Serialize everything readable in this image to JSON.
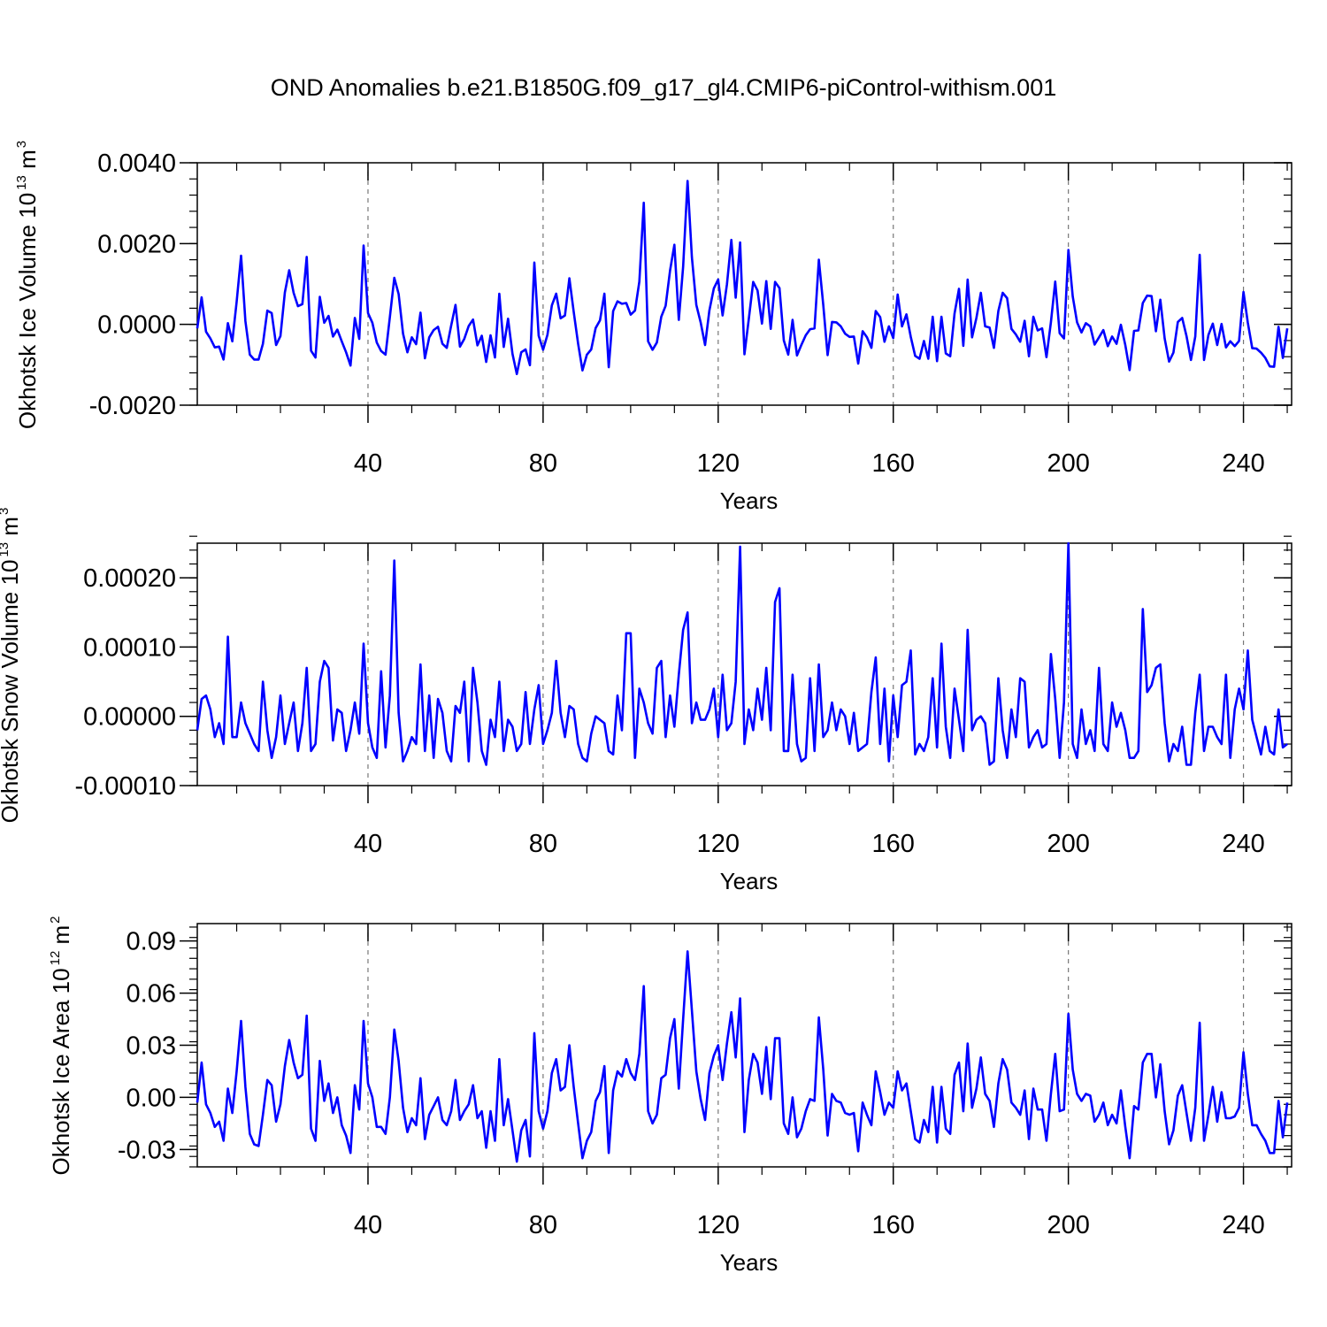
{
  "title": "OND Anomalies b.e21.B1850G.f09_g17_gl4.CMIP6-piControl-withism.001",
  "colors": {
    "series": "#0000ff",
    "axis": "#000000",
    "refline": "#777777"
  },
  "chart_data": [
    {
      "type": "line",
      "name": "ice-volume",
      "ylabel_main": "Okhotsk Ice Volume 10",
      "ylabel_sup1": "13",
      "ylabel_mid": " m",
      "ylabel_sup2": "3",
      "xlabel": "Years",
      "xlim": [
        1,
        251
      ],
      "ylim": [
        -0.002,
        0.004
      ],
      "xticks": [
        40,
        80,
        120,
        160,
        200,
        240
      ],
      "xtick_labels": [
        "40",
        "80",
        "120",
        "160",
        "200",
        "240"
      ],
      "yticks": [
        -0.002,
        0.0,
        0.002,
        0.004
      ],
      "ytick_labels": [
        "-0.0020",
        "0.0000",
        "0.0020",
        "0.0040"
      ],
      "yminor_step": 0.0004,
      "reference_lines_x": [
        40,
        80,
        120,
        160,
        200,
        240
      ],
      "x_start": 1,
      "values": [
        -0.0001,
        0.00067,
        -0.00018,
        -0.00035,
        -0.00057,
        -0.00055,
        -0.00087,
        3e-05,
        -0.00042,
        0.00056,
        0.0017,
        8e-05,
        -0.00075,
        -0.00087,
        -0.00087,
        -0.00048,
        0.00034,
        0.00028,
        -0.00051,
        -0.00029,
        0.00079,
        0.00134,
        0.00078,
        0.00045,
        0.0005,
        0.00167,
        -0.00065,
        -0.00082,
        0.00068,
        4e-05,
        0.00021,
        -0.0003,
        -0.00013,
        -0.00042,
        -0.00069,
        -0.00102,
        0.00016,
        -0.00036,
        0.00195,
        0.00028,
        4e-05,
        -0.00045,
        -0.00066,
        -0.00075,
        0.00018,
        0.00115,
        0.00075,
        -0.00023,
        -0.00069,
        -0.00032,
        -0.00049,
        0.00029,
        -0.00084,
        -0.00032,
        -0.00014,
        -6e-05,
        -0.00048,
        -0.00058,
        -3e-05,
        0.00048,
        -0.00055,
        -0.00036,
        -4e-05,
        0.00012,
        -0.00052,
        -0.00028,
        -0.00093,
        -0.00027,
        -0.00082,
        0.00076,
        -0.00056,
        0.00014,
        -0.00073,
        -0.00123,
        -0.00069,
        -0.00062,
        -0.00101,
        0.00153,
        -0.00028,
        -0.00063,
        -0.00026,
        0.00047,
        0.00076,
        0.00015,
        0.00022,
        0.00114,
        0.00031,
        -0.00048,
        -0.00114,
        -0.00075,
        -0.00062,
        -9e-05,
        0.0001,
        0.00076,
        -0.00106,
        0.00033,
        0.00057,
        0.00051,
        0.00053,
        0.00024,
        0.00034,
        0.00106,
        0.00301,
        -0.00042,
        -0.00063,
        -0.00045,
        0.00019,
        0.00046,
        0.00133,
        0.00197,
        0.00011,
        0.00143,
        0.00355,
        0.00166,
        0.00048,
        5e-05,
        -0.00051,
        0.00035,
        0.00089,
        0.00111,
        0.00022,
        0.00099,
        0.00209,
        0.00066,
        0.00203,
        -0.00074,
        0.00013,
        0.00105,
        0.00084,
        2e-05,
        0.00107,
        -0.00011,
        0.00105,
        0.0009,
        -0.0004,
        -0.00075,
        0.00011,
        -0.00077,
        -0.00051,
        -0.00027,
        -0.00012,
        -0.0001,
        0.0016,
        0.00048,
        -0.00076,
        6e-05,
        5e-05,
        -5e-05,
        -0.00023,
        -0.00031,
        -0.0003,
        -0.00097,
        -0.00017,
        -0.00032,
        -0.00058,
        0.00033,
        0.00018,
        -0.00043,
        -5e-05,
        -0.00034,
        0.00074,
        -5e-05,
        0.00025,
        -0.00031,
        -0.00078,
        -0.00085,
        -0.00041,
        -0.00085,
        0.00019,
        -0.00091,
        0.00019,
        -0.00072,
        -0.00079,
        0.00027,
        0.00088,
        -0.00053,
        0.00111,
        -0.00032,
        0.00016,
        0.00078,
        -5e-05,
        -8e-05,
        -0.00058,
        0.00033,
        0.00078,
        0.00065,
        -0.00011,
        -0.00025,
        -0.00043,
        9e-05,
        -0.00079,
        0.00019,
        -0.00015,
        -0.0001,
        -0.00081,
        5e-05,
        0.00106,
        -0.00022,
        -0.00035,
        0.00184,
        0.00069,
        5e-05,
        -0.0002,
        3e-05,
        -5e-05,
        -0.0005,
        -0.00032,
        -0.00014,
        -0.00054,
        -0.0003,
        -0.00048,
        -1e-05,
        -0.00051,
        -0.00113,
        -0.00016,
        -0.00015,
        0.00053,
        0.00071,
        0.0007,
        -0.00017,
        0.00061,
        -0.00035,
        -0.00092,
        -0.0007,
        6e-05,
        0.00016,
        -0.00029,
        -0.00088,
        -0.0003,
        0.00172,
        -0.00088,
        -0.00026,
        2e-05,
        -0.00051,
        1e-05,
        -0.00057,
        -0.00042,
        -0.00054,
        -0.00041,
        0.0008,
        4e-05,
        -0.00059,
        -0.0006,
        -0.0007,
        -0.00083,
        -0.00104,
        -0.00105,
        -6e-05,
        -0.00083,
        -0.0001
      ]
    },
    {
      "type": "line",
      "name": "snow-volume",
      "ylabel_main": "Okhotsk Snow Volume 10",
      "ylabel_sup1": "13",
      "ylabel_mid": " m",
      "ylabel_sup2": "3",
      "xlabel": "Years",
      "xlim": [
        1,
        251
      ],
      "ylim": [
        -0.0001,
        0.00025
      ],
      "xticks": [
        40,
        80,
        120,
        160,
        200,
        240
      ],
      "xtick_labels": [
        "40",
        "80",
        "120",
        "160",
        "200",
        "240"
      ],
      "yticks": [
        -0.0001,
        0.0,
        0.0001,
        0.0002
      ],
      "ytick_labels": [
        "-0.00010",
        "0.00000",
        "0.00010",
        "0.00020"
      ],
      "yminor_step": 2e-05,
      "reference_lines_x": [
        40,
        80,
        120,
        160,
        200,
        240
      ],
      "x_start": 1,
      "values": [
        -2e-05,
        2.5e-05,
        3e-05,
        1e-05,
        -3e-05,
        -1e-05,
        -4e-05,
        0.000115,
        -3e-05,
        -3e-05,
        2e-05,
        -1e-05,
        -2.5e-05,
        -4e-05,
        -5e-05,
        5e-05,
        -2e-05,
        -6e-05,
        -3e-05,
        3e-05,
        -4e-05,
        -1e-05,
        2e-05,
        -5e-05,
        -1e-05,
        7e-05,
        -5e-05,
        -4e-05,
        5e-05,
        8e-05,
        7e-05,
        -3.5e-05,
        1e-05,
        5e-06,
        -5e-05,
        -2e-05,
        2e-05,
        -2.5e-05,
        0.000105,
        -1e-05,
        -4.5e-05,
        -6e-05,
        6.5e-05,
        -4.5e-05,
        3e-05,
        0.000225,
        5e-06,
        -6.5e-05,
        -5e-05,
        -3e-05,
        -4e-05,
        7.5e-05,
        -5e-05,
        3e-05,
        -6e-05,
        2.5e-05,
        5e-06,
        -5e-05,
        -6.5e-05,
        1.5e-05,
        5e-06,
        5e-05,
        -6.5e-05,
        7e-05,
        2e-05,
        -5e-05,
        -7e-05,
        -5e-06,
        -3e-05,
        5e-05,
        -5e-05,
        -5e-06,
        -1.5e-05,
        -5e-05,
        -4e-05,
        3.5e-05,
        -4e-05,
        1e-05,
        4.5e-05,
        -4e-05,
        -2e-05,
        5e-06,
        8e-05,
        5e-06,
        -3e-05,
        1.5e-05,
        1e-05,
        -4e-05,
        -6e-05,
        -6.5e-05,
        -2.5e-05,
        0.0,
        -5e-06,
        -1e-05,
        -5e-05,
        -5.5e-05,
        3e-05,
        -2e-05,
        0.00012,
        0.00012,
        -6e-05,
        4e-05,
        2e-05,
        -1e-05,
        -2.5e-05,
        7e-05,
        8e-05,
        -3e-05,
        3e-05,
        -1.5e-05,
        6e-05,
        0.000125,
        0.00015,
        -1e-05,
        2e-05,
        -5e-06,
        -5e-06,
        1e-05,
        4e-05,
        -3e-05,
        6e-05,
        -2e-05,
        -1e-05,
        5e-05,
        0.000245,
        -4e-05,
        1e-05,
        -2e-05,
        4e-05,
        -5e-06,
        7e-05,
        -2e-05,
        0.000165,
        0.000185,
        -5e-05,
        -5e-05,
        6e-05,
        -4e-05,
        -6.5e-05,
        -6e-05,
        5.5e-05,
        -5e-05,
        7.5e-05,
        -3e-05,
        -2e-05,
        2e-05,
        -2e-05,
        1e-05,
        0.0,
        -4e-05,
        5e-06,
        -5e-05,
        -4.5e-05,
        -4e-05,
        3.5e-05,
        8.5e-05,
        -4e-05,
        4e-05,
        -6.5e-05,
        3e-05,
        -3e-05,
        4.5e-05,
        5e-05,
        9.5e-05,
        -5.5e-05,
        -4e-05,
        -5e-05,
        -3e-05,
        5.5e-05,
        -4.5e-05,
        0.000105,
        -1.5e-05,
        -6e-05,
        4e-05,
        -5e-06,
        -5e-05,
        0.000125,
        -2e-05,
        -5e-06,
        0.0,
        -1e-05,
        -7e-05,
        -6.5e-05,
        5.5e-05,
        -2e-05,
        -6e-05,
        1e-05,
        -3e-05,
        5.5e-05,
        5e-05,
        -4.5e-05,
        -3e-05,
        -2e-05,
        -4.5e-05,
        -4e-05,
        9e-05,
        2.5e-05,
        -6e-05,
        2e-05,
        0.00025,
        -4e-05,
        -6e-05,
        1e-05,
        -4e-05,
        -2e-05,
        -5e-05,
        7e-05,
        -4e-05,
        -5e-05,
        2e-05,
        -1.5e-05,
        5e-06,
        -2e-05,
        -6e-05,
        -6e-05,
        -5e-05,
        0.000155,
        3.5e-05,
        4.5e-05,
        7e-05,
        7.5e-05,
        -1e-05,
        -6.5e-05,
        -4e-05,
        -5e-05,
        -1.5e-05,
        -7e-05,
        -7e-05,
        5e-06,
        6e-05,
        -5e-05,
        -1.5e-05,
        -1.5e-05,
        -3e-05,
        -4e-05,
        6e-05,
        -6e-05,
        1e-05,
        4e-05,
        1e-05,
        9.5e-05,
        -5e-06,
        -3e-05,
        -5.5e-05,
        -1.5e-05,
        -5e-05,
        -5.5e-05,
        1e-05,
        -4.5e-05,
        -4e-05
      ]
    },
    {
      "type": "line",
      "name": "ice-area",
      "ylabel_main": "Okhotsk Ice Area 10",
      "ylabel_sup1": "12",
      "ylabel_mid": " m",
      "ylabel_sup2": "2",
      "xlabel": "Years",
      "xlim": [
        1,
        251
      ],
      "ylim": [
        -0.04,
        0.1
      ],
      "xticks": [
        40,
        80,
        120,
        160,
        200,
        240
      ],
      "xtick_labels": [
        "40",
        "80",
        "120",
        "160",
        "200",
        "240"
      ],
      "yticks": [
        -0.03,
        0.0,
        0.03,
        0.06,
        0.09
      ],
      "ytick_labels": [
        "-0.03",
        "0.00",
        "0.03",
        "0.06",
        "0.09"
      ],
      "yminor_step": 0.006,
      "reference_lines_x": [
        40,
        80,
        120,
        160,
        200,
        240
      ],
      "x_start": 1,
      "values": [
        -0.003,
        0.02,
        -0.004,
        -0.009,
        -0.017,
        -0.014,
        -0.025,
        0.005,
        -0.009,
        0.015,
        0.044,
        0.006,
        -0.021,
        -0.027,
        -0.028,
        -0.01,
        0.01,
        0.007,
        -0.014,
        -0.004,
        0.018,
        0.033,
        0.02,
        0.011,
        0.013,
        0.047,
        -0.018,
        -0.025,
        0.021,
        -0.002,
        0.008,
        -0.009,
        0.0,
        -0.016,
        -0.022,
        -0.032,
        0.007,
        -0.007,
        0.044,
        0.008,
        0.0,
        -0.017,
        -0.017,
        -0.021,
        0.0,
        0.039,
        0.021,
        -0.006,
        -0.02,
        -0.012,
        -0.016,
        0.011,
        -0.024,
        -0.01,
        -0.005,
        0.0,
        -0.013,
        -0.016,
        -0.008,
        0.01,
        -0.013,
        -0.008,
        -0.004,
        0.007,
        -0.012,
        -0.008,
        -0.029,
        -0.008,
        -0.025,
        0.022,
        -0.016,
        -0.001,
        -0.019,
        -0.037,
        -0.019,
        -0.013,
        -0.034,
        0.037,
        -0.008,
        -0.018,
        -0.008,
        0.014,
        0.022,
        0.004,
        0.006,
        0.03,
        0.006,
        -0.015,
        -0.035,
        -0.025,
        -0.02,
        -0.002,
        0.003,
        0.018,
        -0.032,
        0.004,
        0.015,
        0.012,
        0.022,
        0.014,
        0.01,
        0.025,
        0.064,
        -0.008,
        -0.015,
        -0.01,
        0.011,
        0.013,
        0.034,
        0.045,
        0.005,
        0.045,
        0.084,
        0.05,
        0.015,
        -0.001,
        -0.013,
        0.014,
        0.024,
        0.03,
        0.01,
        0.031,
        0.049,
        0.023,
        0.057,
        -0.02,
        0.01,
        0.025,
        0.02,
        0.002,
        0.029,
        -0.001,
        0.034,
        0.034,
        -0.015,
        -0.021,
        0.0,
        -0.023,
        -0.018,
        -0.008,
        -0.001,
        -0.002,
        0.046,
        0.016,
        -0.022,
        0.002,
        -0.002,
        -0.003,
        -0.009,
        -0.01,
        -0.009,
        -0.031,
        -0.003,
        -0.01,
        -0.016,
        0.015,
        0.003,
        -0.01,
        -0.003,
        -0.006,
        0.015,
        0.004,
        0.008,
        -0.008,
        -0.024,
        -0.026,
        -0.013,
        -0.02,
        0.006,
        -0.026,
        0.006,
        -0.018,
        -0.021,
        0.013,
        0.02,
        -0.008,
        0.031,
        -0.006,
        0.005,
        0.023,
        0.002,
        -0.002,
        -0.017,
        0.008,
        0.022,
        0.016,
        -0.003,
        -0.006,
        -0.01,
        0.004,
        -0.024,
        0.005,
        -0.007,
        -0.007,
        -0.025,
        0.002,
        0.025,
        -0.008,
        -0.007,
        0.048,
        0.016,
        0.002,
        -0.002,
        0.002,
        0.001,
        -0.014,
        -0.01,
        -0.003,
        -0.016,
        -0.01,
        -0.015,
        0.004,
        -0.017,
        -0.035,
        -0.005,
        -0.007,
        0.02,
        0.025,
        0.025,
        0.0,
        0.019,
        -0.008,
        -0.027,
        -0.019,
        0.001,
        0.007,
        -0.009,
        -0.025,
        -0.006,
        0.043,
        -0.025,
        -0.01,
        0.006,
        -0.014,
        0.003,
        -0.012,
        -0.012,
        -0.011,
        -0.006,
        0.026,
        0.002,
        -0.016,
        -0.016,
        -0.021,
        -0.025,
        -0.032,
        -0.032,
        -0.002,
        -0.023,
        -0.003
      ]
    }
  ]
}
